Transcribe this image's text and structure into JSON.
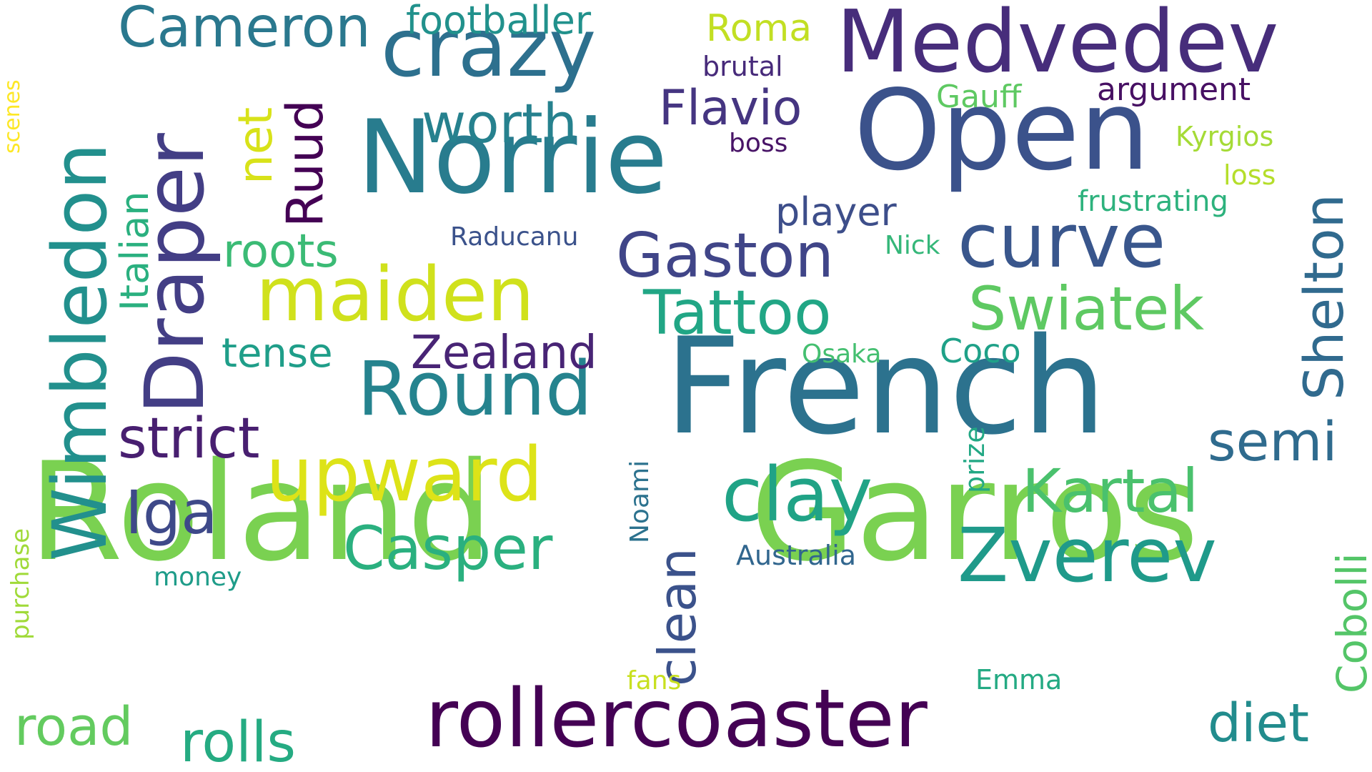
{
  "palette": {
    "purple-dark": "#440154",
    "purple": "#482878",
    "indigo": "#3e4989",
    "blue": "#31688e",
    "teal-blue": "#26828e",
    "teal": "#1f9e89",
    "green-teal": "#35b779",
    "green": "#6ece58",
    "lime": "#b5de2b",
    "yellow": "#e0e31a"
  },
  "words": [
    {
      "text": "Roland",
      "color": "#7ad151"
    },
    {
      "text": "Garros",
      "color": "#7ad151"
    },
    {
      "text": "French",
      "color": "#2c728e"
    },
    {
      "text": "Open",
      "color": "#3b528b"
    },
    {
      "text": "Norrie",
      "color": "#287c8e"
    },
    {
      "text": "Medvedev",
      "color": "#472d7b"
    },
    {
      "text": "Wimbledon",
      "color": "#22908d"
    },
    {
      "text": "Draper",
      "color": "#433e85"
    },
    {
      "text": "crazy",
      "color": "#2d708e"
    },
    {
      "text": "rollercoaster",
      "color": "#440154"
    },
    {
      "text": "Round",
      "color": "#25838e"
    },
    {
      "text": "upward",
      "color": "#dde318"
    },
    {
      "text": "maiden",
      "color": "#d0e11c"
    },
    {
      "text": "curve",
      "color": "#39568c"
    },
    {
      "text": "clay",
      "color": "#20a386"
    },
    {
      "text": "Zverev",
      "color": "#1f9a8a"
    },
    {
      "text": "Swiatek",
      "color": "#5ec962"
    },
    {
      "text": "Tattoo",
      "color": "#21a685"
    },
    {
      "text": "Gaston",
      "color": "#404588"
    },
    {
      "text": "Kartal",
      "color": "#4ac16d"
    },
    {
      "text": "Casper",
      "color": "#2ab07f"
    },
    {
      "text": "Cameron",
      "color": "#2a788e"
    },
    {
      "text": "strict",
      "color": "#481f70"
    },
    {
      "text": "Shelton",
      "color": "#306a8e"
    },
    {
      "text": "worth",
      "color": "#26818e"
    },
    {
      "text": "Flavio",
      "color": "#453581"
    },
    {
      "text": "Ruud",
      "color": "#440154"
    },
    {
      "text": "Iga",
      "color": "#3e4989"
    },
    {
      "text": "clean",
      "color": "#3b528b"
    },
    {
      "text": "Zealand",
      "color": "#482475"
    },
    {
      "text": "semi",
      "color": "#2f6b8e"
    },
    {
      "text": "rolls",
      "color": "#25ab82"
    },
    {
      "text": "road",
      "color": "#63cb5f"
    },
    {
      "text": "diet",
      "color": "#228c8d"
    },
    {
      "text": "Cobolli",
      "color": "#54c568"
    },
    {
      "text": "roots",
      "color": "#3bbb75"
    },
    {
      "text": "Italian",
      "color": "#2ab07f"
    },
    {
      "text": "net",
      "color": "#d8e219"
    },
    {
      "text": "tense",
      "color": "#1f9e89"
    },
    {
      "text": "player",
      "color": "#3d4e8a"
    },
    {
      "text": "footballer",
      "color": "#21918c"
    },
    {
      "text": "Roma",
      "color": "#c2df23"
    },
    {
      "text": "argument",
      "color": "#471063"
    },
    {
      "text": "Gauff",
      "color": "#5ec962"
    },
    {
      "text": "Kyrgios",
      "color": "#a5db36"
    },
    {
      "text": "loss",
      "color": "#b5de2b"
    },
    {
      "text": "frustrating",
      "color": "#2db27d"
    },
    {
      "text": "Coco",
      "color": "#1fa188"
    },
    {
      "text": "Osaka",
      "color": "#44bf70"
    },
    {
      "text": "Raducanu",
      "color": "#3b528b"
    },
    {
      "text": "Nick",
      "color": "#35b779"
    },
    {
      "text": "brutal",
      "color": "#472a7a"
    },
    {
      "text": "boss",
      "color": "#481467"
    },
    {
      "text": "prize",
      "color": "#22a884"
    },
    {
      "text": "Noami",
      "color": "#2c728e"
    },
    {
      "text": "Australia",
      "color": "#31668e"
    },
    {
      "text": "money",
      "color": "#1e9c89"
    },
    {
      "text": "purchase",
      "color": "#a0da39"
    },
    {
      "text": "scenes",
      "color": "#fde725"
    },
    {
      "text": "fans",
      "color": "#c8e020"
    },
    {
      "text": "Emma",
      "color": "#24aa83"
    }
  ]
}
